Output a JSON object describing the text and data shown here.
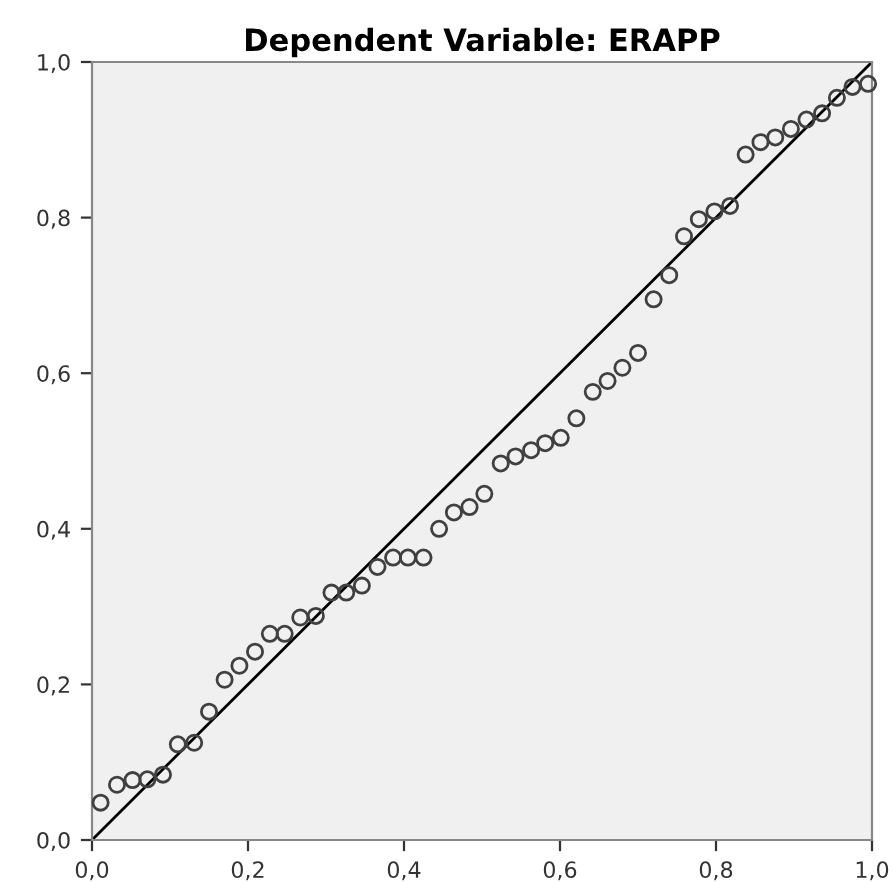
{
  "chart_data": {
    "type": "scatter",
    "title": "Dependent Variable: ERAPP",
    "series": [
      {
        "color": "#404040",
        "marker": "circle",
        "x": [
          0.011,
          0.032,
          0.052,
          0.071,
          0.091,
          0.11,
          0.131,
          0.15,
          0.17,
          0.189,
          0.209,
          0.228,
          0.247,
          0.267,
          0.287,
          0.307,
          0.326,
          0.346,
          0.366,
          0.386,
          0.405,
          0.425,
          0.445,
          0.464,
          0.484,
          0.503,
          0.524,
          0.543,
          0.563,
          0.581,
          0.601,
          0.621,
          0.642,
          0.661,
          0.68,
          0.7,
          0.72,
          0.74,
          0.759,
          0.778,
          0.798,
          0.818,
          0.838,
          0.857,
          0.876,
          0.896,
          0.916,
          0.936,
          0.955,
          0.975,
          0.995
        ],
        "values": [
          0.048,
          0.071,
          0.077,
          0.078,
          0.084,
          0.123,
          0.125,
          0.165,
          0.206,
          0.224,
          0.242,
          0.265,
          0.265,
          0.286,
          0.288,
          0.318,
          0.318,
          0.327,
          0.351,
          0.363,
          0.363,
          0.363,
          0.4,
          0.421,
          0.428,
          0.445,
          0.484,
          0.493,
          0.501,
          0.51,
          0.517,
          0.542,
          0.576,
          0.59,
          0.607,
          0.626,
          0.695,
          0.726,
          0.776,
          0.798,
          0.808,
          0.815,
          0.881,
          0.897,
          0.903,
          0.914,
          0.926,
          0.934,
          0.954,
          0.968,
          0.972
        ]
      },
      {
        "type": "line",
        "color": "#000000",
        "marker": "none",
        "line_style": "solid",
        "x": [
          0,
          1
        ],
        "values": [
          0,
          1
        ]
      }
    ],
    "xlim": [
      0,
      1
    ],
    "ylim": [
      0,
      1
    ],
    "xticks": [
      {
        "value": 0,
        "label": "0,0"
      },
      {
        "value": 0.2,
        "label": "0,2"
      },
      {
        "value": 0.4,
        "label": "0,4"
      },
      {
        "value": 0.6,
        "label": "0,6"
      },
      {
        "value": 0.8,
        "label": "0,8"
      },
      {
        "value": 1,
        "label": "1,0"
      }
    ],
    "yticks": [
      {
        "value": 0,
        "label": "0,0"
      },
      {
        "value": 0.2,
        "label": "0,2"
      },
      {
        "value": 0.4,
        "label": "0,4"
      },
      {
        "value": 0.6,
        "label": "0,6"
      },
      {
        "value": 0.8,
        "label": "0,8"
      },
      {
        "value": 1,
        "label": "1,0"
      }
    ]
  }
}
